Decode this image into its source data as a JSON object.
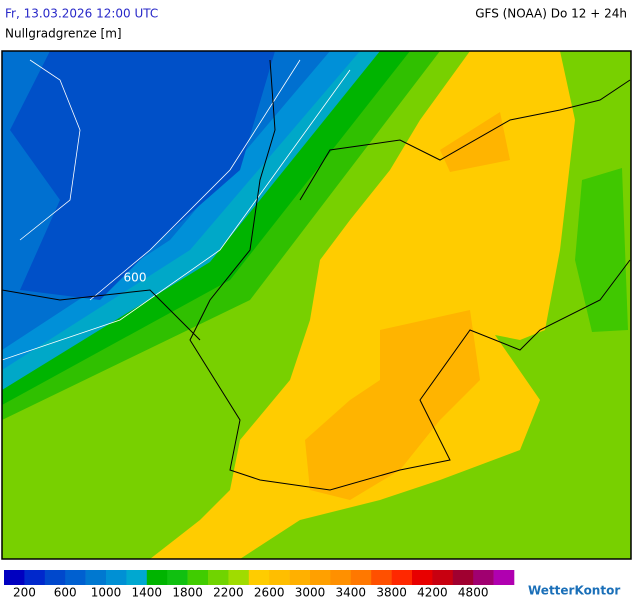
{
  "header": {
    "datetime": "Fr, 13.03.2026 12:00 UTC",
    "model": "GFS (NOAA) Do 12 + 24h",
    "parameter": "Nullgradgrenze [m]"
  },
  "map": {
    "contour_label": "600"
  },
  "legend": {
    "colors": [
      "#0000c0",
      "#0028cc",
      "#0048cc",
      "#0060d0",
      "#0078d0",
      "#0090d4",
      "#00a8d0",
      "#00b400",
      "#10c010",
      "#40cc00",
      "#70d400",
      "#a0dc00",
      "#ffcc00",
      "#ffbe00",
      "#ffb000",
      "#ffa000",
      "#ff9000",
      "#ff7800",
      "#ff5000",
      "#ff2800",
      "#e80000",
      "#c80010",
      "#a00030",
      "#a00070",
      "#b000b0"
    ],
    "ticks": [
      200,
      600,
      1000,
      1400,
      1800,
      2200,
      2600,
      3000,
      3400,
      3800,
      4200,
      4800
    ]
  },
  "brand": "WetterKontor"
}
